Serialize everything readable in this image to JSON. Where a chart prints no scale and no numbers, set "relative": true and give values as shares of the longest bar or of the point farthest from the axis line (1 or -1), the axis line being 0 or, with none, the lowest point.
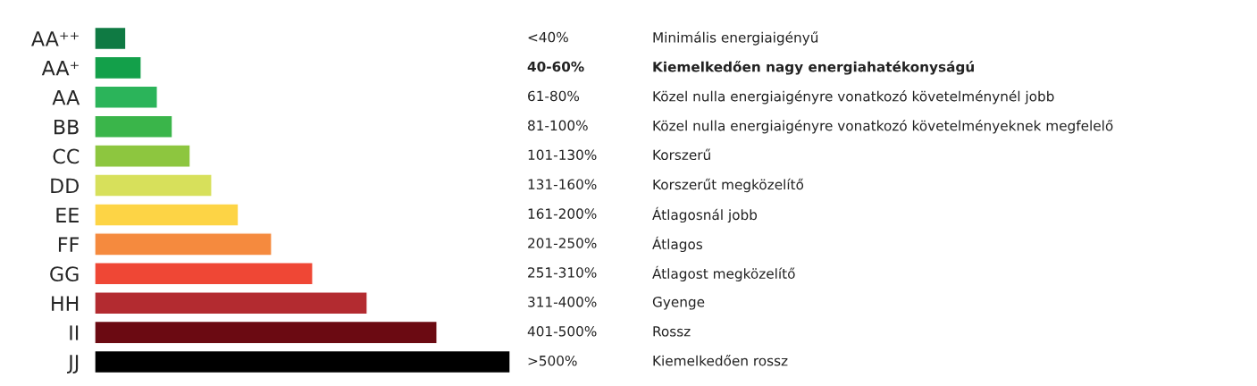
{
  "chart_data": {
    "type": "bar",
    "orientation": "horizontal",
    "relative": true,
    "legend": false,
    "grid": false,
    "categories": [
      "AA⁺⁺",
      "AA⁺",
      "AA",
      "BB",
      "CC",
      "DD",
      "EE",
      "FF",
      "GG",
      "HH",
      "II",
      "JJ"
    ],
    "values": [
      0.075,
      0.112,
      0.151,
      0.187,
      0.23,
      0.282,
      0.346,
      0.426,
      0.525,
      0.656,
      0.824,
      1
    ],
    "colors": [
      "#0f7a43",
      "#13a04a",
      "#2bb45a",
      "#3ab54a",
      "#8dc63f",
      "#d7e05b",
      "#fdd445",
      "#f58a3e",
      "#ef4735",
      "#b32b30",
      "#6b0a12",
      "#000000"
    ],
    "annotations": [
      "<40%",
      "Minimális energiaigényű",
      "40-60%",
      "Kiemelkedően nagy energiahatékonyságú",
      "61-80%",
      "Közel nulla energiaigényre vonatkozó követelménynél jobb",
      "81-100%",
      "Közel nulla energiaigényre vonatkozó követelményeknek megfelelő",
      "101-130%",
      "Korszerű",
      "131-160%",
      "Korszerűt megközelítő",
      "161-200%",
      "Átlagosnál jobb",
      "201-250%",
      "Átlagos",
      "251-310%",
      "Átlagost megközelítő",
      "311-400%",
      "Gyenge",
      "401-500%",
      "Rossz",
      ">500%",
      "Kiemelkedően rossz"
    ]
  }
}
